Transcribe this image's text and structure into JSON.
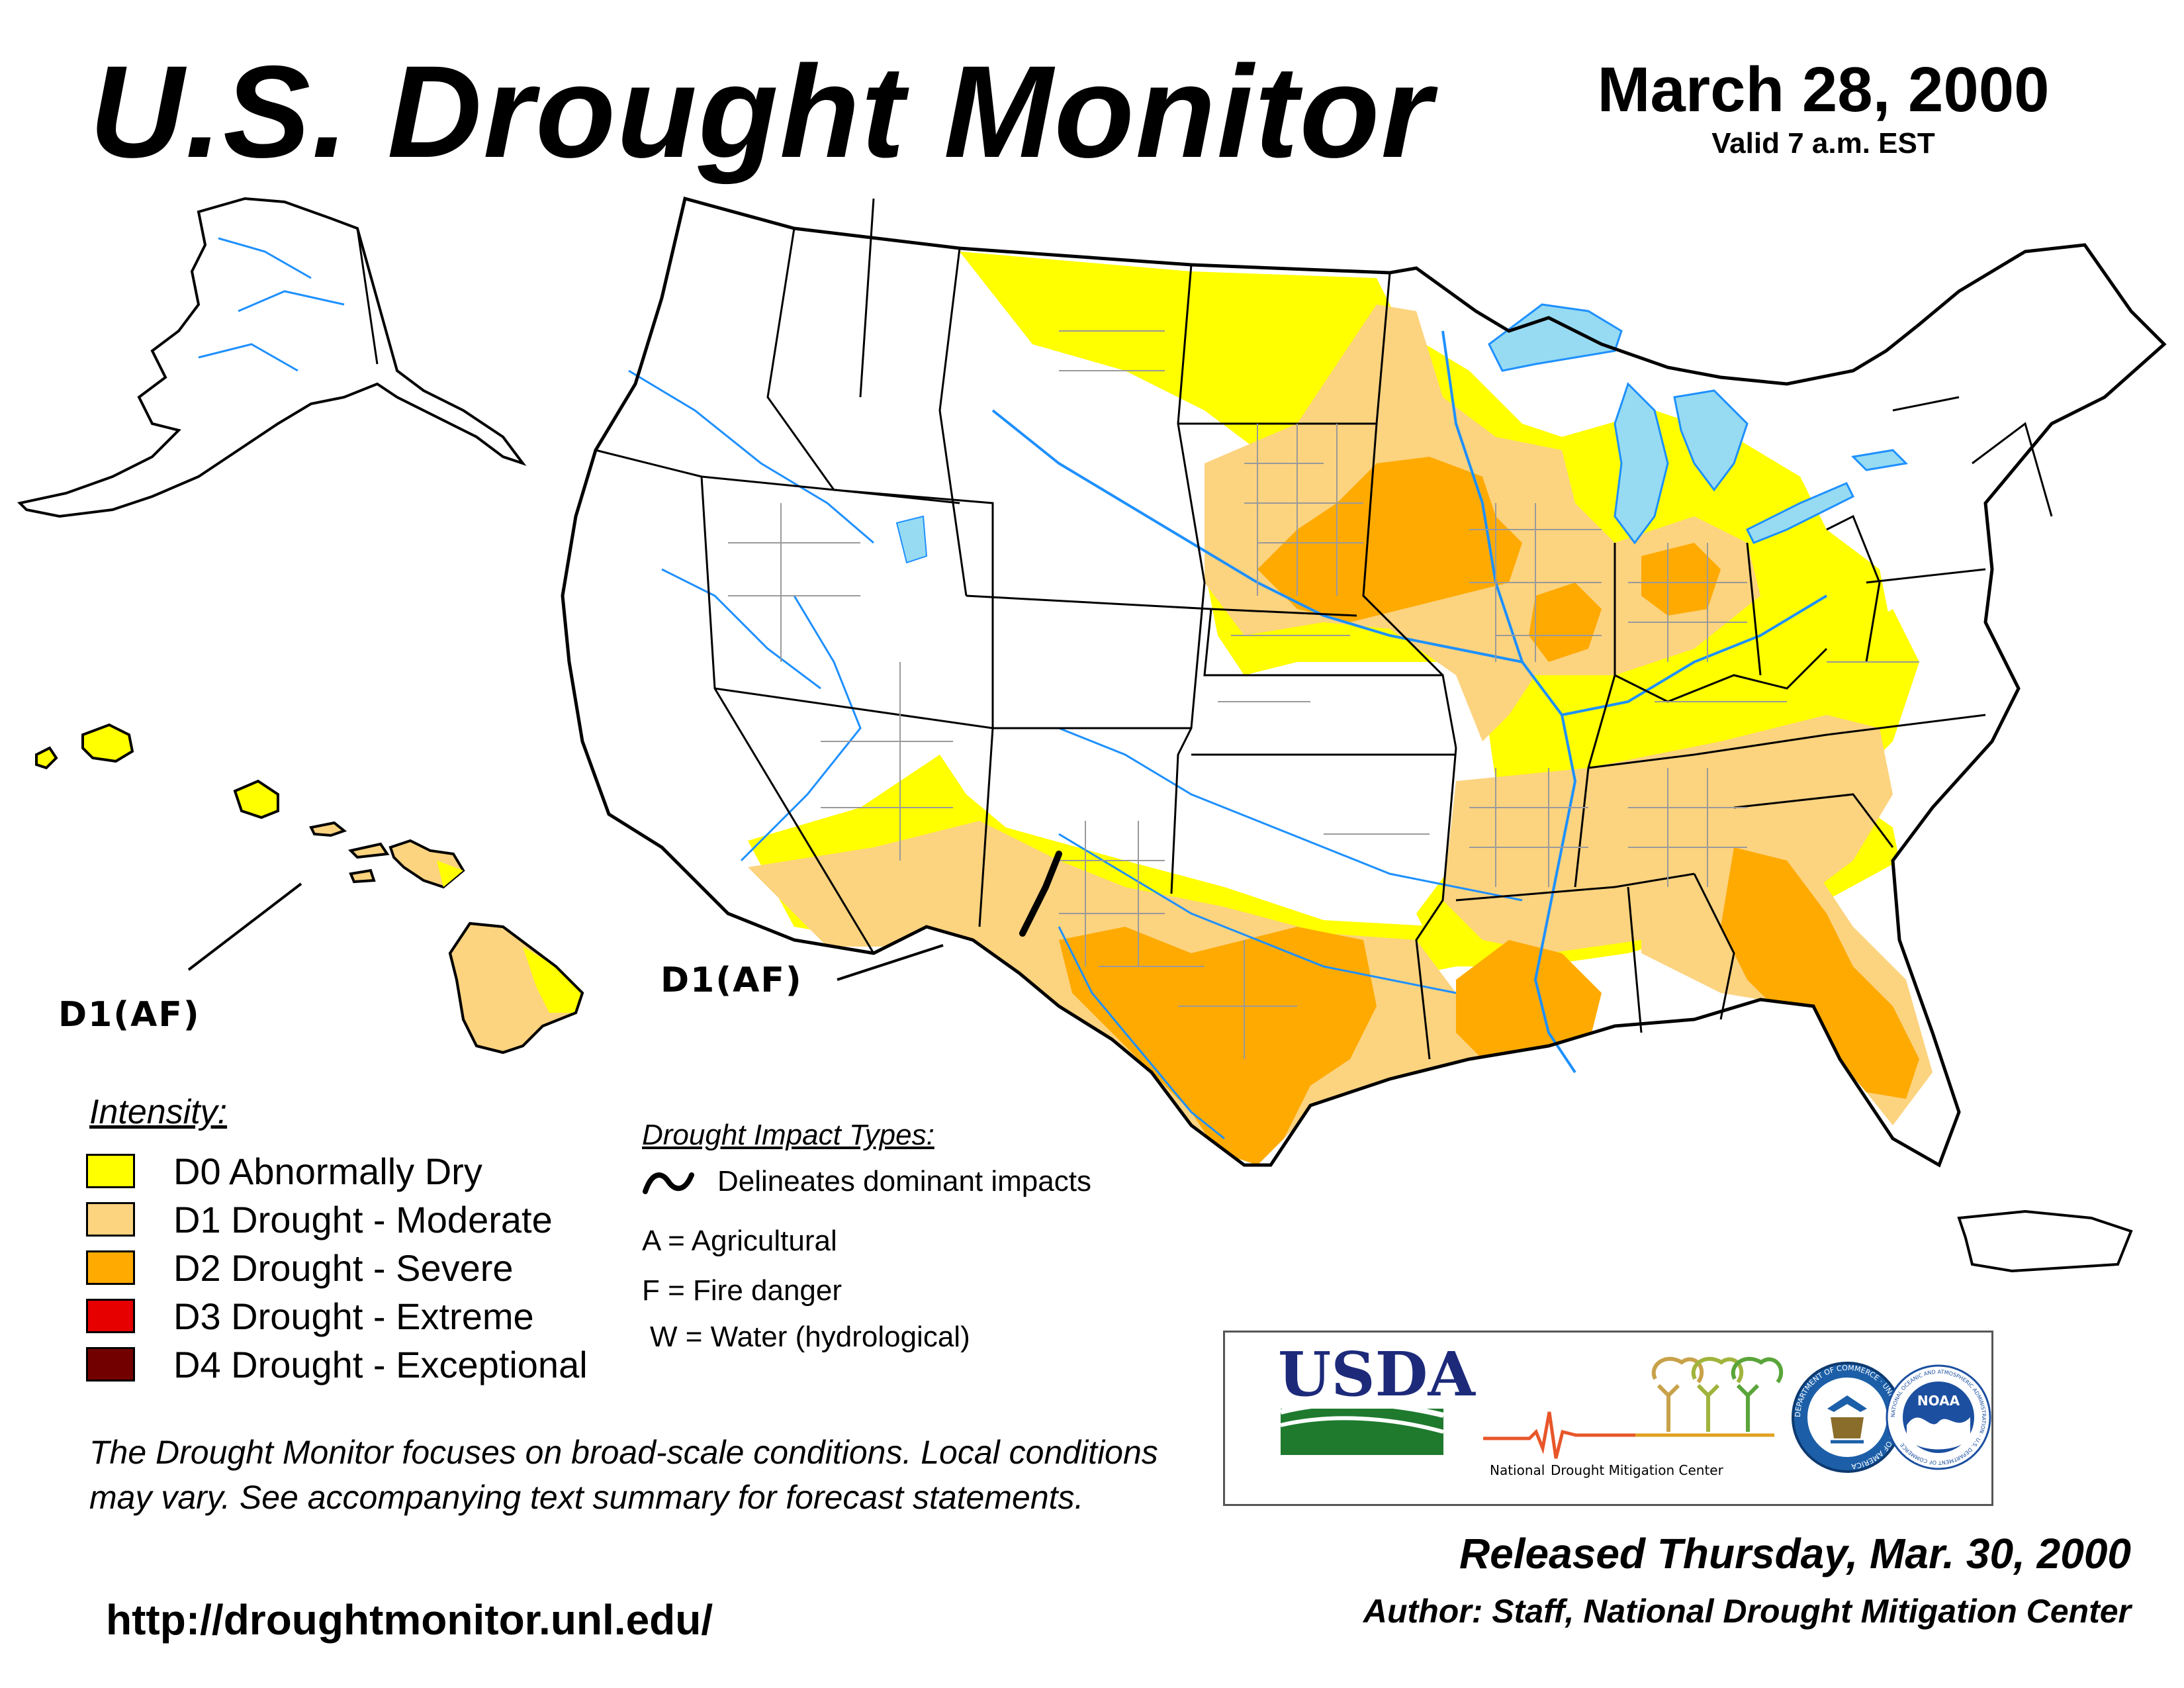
{
  "header": {
    "title": "U.S. Drought Monitor",
    "date": "March 28, 2000",
    "valid": "Valid 7 a.m. EST"
  },
  "map": {
    "labels": {
      "hawaii_impact": "D1(AF)",
      "southwest_impact": "D1(AF)"
    },
    "colors": {
      "D0": "#ffff00",
      "D1": "#fcd37f",
      "D2": "#ffaa00",
      "D3": "#e60000",
      "D4": "#730000",
      "water": "#97dbf2",
      "river": "#1e90ff",
      "county": "#9a9a9a"
    }
  },
  "legend": {
    "title": "Intensity:",
    "items": [
      {
        "label": "D0 Abnormally Dry",
        "color": "#ffff00"
      },
      {
        "label": "D1 Drought - Moderate",
        "color": "#fcd37f"
      },
      {
        "label": "D2 Drought - Severe",
        "color": "#ffaa00"
      },
      {
        "label": "D3 Drought - Extreme",
        "color": "#e60000"
      },
      {
        "label": "D4 Drought - Exceptional",
        "color": "#730000"
      }
    ]
  },
  "impacts": {
    "title": "Drought Impact Types:",
    "line_desc": "Delineates dominant impacts",
    "types": [
      "A = Agricultural",
      "F = Fire danger",
      "W = Water (hydrological)"
    ]
  },
  "disclaimer": "The Drought Monitor focuses on broad-scale conditions. Local conditions may vary. See accompanying text summary for forecast statements.",
  "url": "http://droughtmonitor.unl.edu/",
  "logos": {
    "usda": "USDA",
    "ndmc_left": "National",
    "ndmc_right": "Drought Mitigation Center",
    "doc_ring": "DEPARTMENT OF COMMERCE · UNITED STATES OF AMERICA",
    "noaa": "NOAA",
    "noaa_ring": "NATIONAL OCEANIC AND ATMOSPHERIC ADMINISTRATION · U.S. DEPARTMENT OF COMMERCE"
  },
  "footer": {
    "released": "Released Thursday, Mar. 30, 2000",
    "author": "Author: Staff, National Drought Mitigation Center"
  }
}
